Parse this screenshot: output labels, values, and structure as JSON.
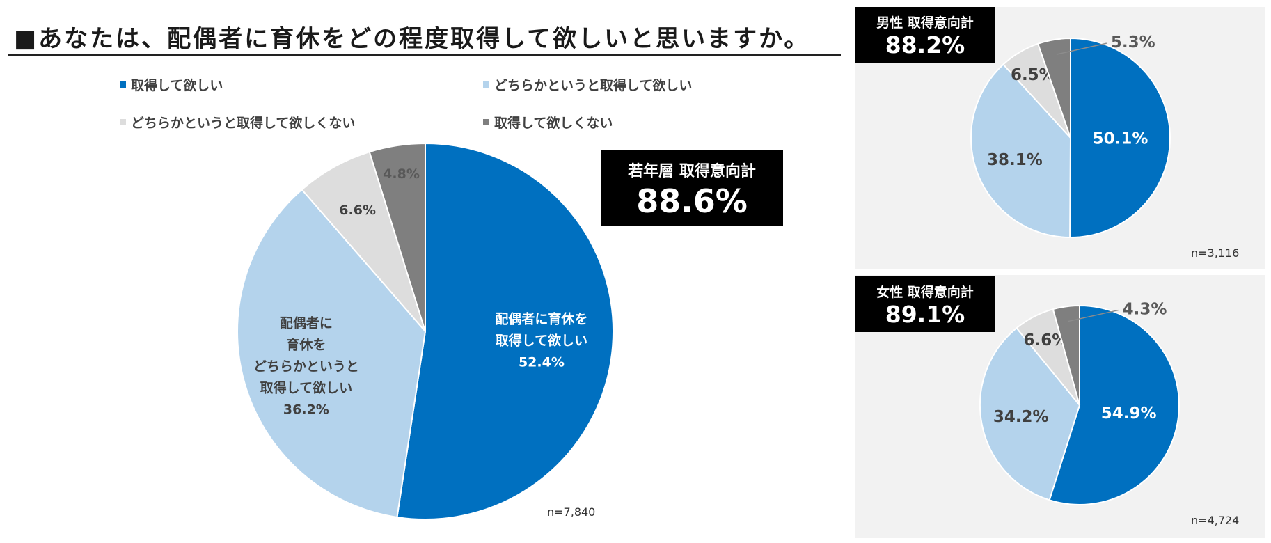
{
  "title": "■あなたは、配偶者に育休をどの程度取得して欲しいと思いますか。",
  "legend": [
    {
      "label": "取得して欲しい",
      "color": "#0070C0"
    },
    {
      "label": "どちらかというと取得して欲しい",
      "color": "#B4D3EC"
    },
    {
      "label": "どちらかというと取得して欲しくない",
      "color": "#DDDDDD"
    },
    {
      "label": "取得して欲しくない",
      "color": "#7F7F7F"
    }
  ],
  "main_callout": {
    "label": "若年層 取得意向計",
    "value": "88.6%"
  },
  "male_callout": {
    "label": "男性 取得意向計",
    "value": "88.2%"
  },
  "female_callout": {
    "label": "女性 取得意向計",
    "value": "89.1%"
  },
  "chart_data": [
    {
      "type": "pie",
      "categories": [
        "取得して欲しい",
        "どちらかというと取得して欲しい",
        "どちらかというと取得して欲しくない",
        "取得して欲しくない"
      ],
      "values": [
        52.4,
        36.2,
        6.6,
        4.8
      ],
      "colors": [
        "#0070C0",
        "#B4D3EC",
        "#DDDDDD",
        "#7F7F7F"
      ],
      "data_labels": [
        [
          "配偶者に育休を",
          "取得して欲しい",
          "52.4%"
        ],
        [
          "配偶者に",
          "育休を",
          "どちらかというと",
          "取得して欲しい",
          "36.2%"
        ],
        [
          "6.6%"
        ],
        [
          "4.8%"
        ]
      ],
      "n": "n=7,840"
    },
    {
      "type": "pie",
      "categories": [
        "取得して欲しい",
        "どちらかというと取得して欲しい",
        "どちらかというと取得して欲しくない",
        "取得して欲しくない"
      ],
      "values": [
        50.1,
        38.1,
        6.5,
        5.3
      ],
      "colors": [
        "#0070C0",
        "#B4D3EC",
        "#DDDDDD",
        "#7F7F7F"
      ],
      "data_labels": [
        [
          "50.1%"
        ],
        [
          "38.1%"
        ],
        [
          "6.5%"
        ],
        [
          "5.3%"
        ]
      ],
      "n": "n=3,116"
    },
    {
      "type": "pie",
      "categories": [
        "取得して欲しい",
        "どちらかというと取得して欲しい",
        "どちらかというと取得して欲しくない",
        "取得して欲しくない"
      ],
      "values": [
        54.9,
        34.2,
        6.6,
        4.3
      ],
      "colors": [
        "#0070C0",
        "#B4D3EC",
        "#DDDDDD",
        "#7F7F7F"
      ],
      "data_labels": [
        [
          "54.9%"
        ],
        [
          "34.2%"
        ],
        [
          "6.6%"
        ],
        [
          "4.3%"
        ]
      ],
      "n": "n=4,724"
    }
  ]
}
